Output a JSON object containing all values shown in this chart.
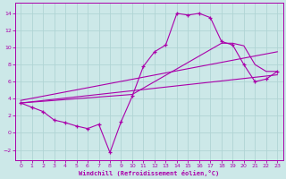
{
  "xlabel": "Windchill (Refroidissement éolien,°C)",
  "background_color": "#cce8e8",
  "grid_color": "#b0d4d4",
  "line_color": "#aa00aa",
  "xlim": [
    -0.5,
    23.5
  ],
  "ylim": [
    -3.2,
    15.2
  ],
  "xticks": [
    0,
    1,
    2,
    3,
    4,
    5,
    6,
    7,
    8,
    9,
    10,
    11,
    12,
    13,
    14,
    15,
    16,
    17,
    18,
    19,
    20,
    21,
    22,
    23
  ],
  "yticks": [
    -2,
    0,
    2,
    4,
    6,
    8,
    10,
    12,
    14
  ],
  "line1_x": [
    0,
    1,
    2,
    3,
    4,
    5,
    6,
    7,
    8,
    9,
    10,
    11,
    12,
    13,
    14,
    15,
    16,
    17,
    18,
    19,
    20,
    21,
    22,
    23
  ],
  "line1_y": [
    3.5,
    3.0,
    2.5,
    1.5,
    1.2,
    0.8,
    0.5,
    1.0,
    -2.3,
    1.3,
    4.3,
    7.8,
    9.5,
    10.3,
    14.0,
    13.8,
    14.0,
    13.5,
    10.7,
    10.3,
    8.0,
    6.0,
    6.3,
    7.2
  ],
  "line2_x": [
    0,
    10,
    14,
    18,
    19,
    20,
    21,
    22,
    23
  ],
  "line2_y": [
    3.5,
    4.5,
    7.5,
    10.5,
    10.5,
    10.2,
    8.0,
    7.2,
    7.2
  ],
  "line3_x": [
    0,
    23
  ],
  "line3_y": [
    3.8,
    9.5
  ],
  "line4_x": [
    0,
    23
  ],
  "line4_y": [
    3.5,
    6.8
  ]
}
